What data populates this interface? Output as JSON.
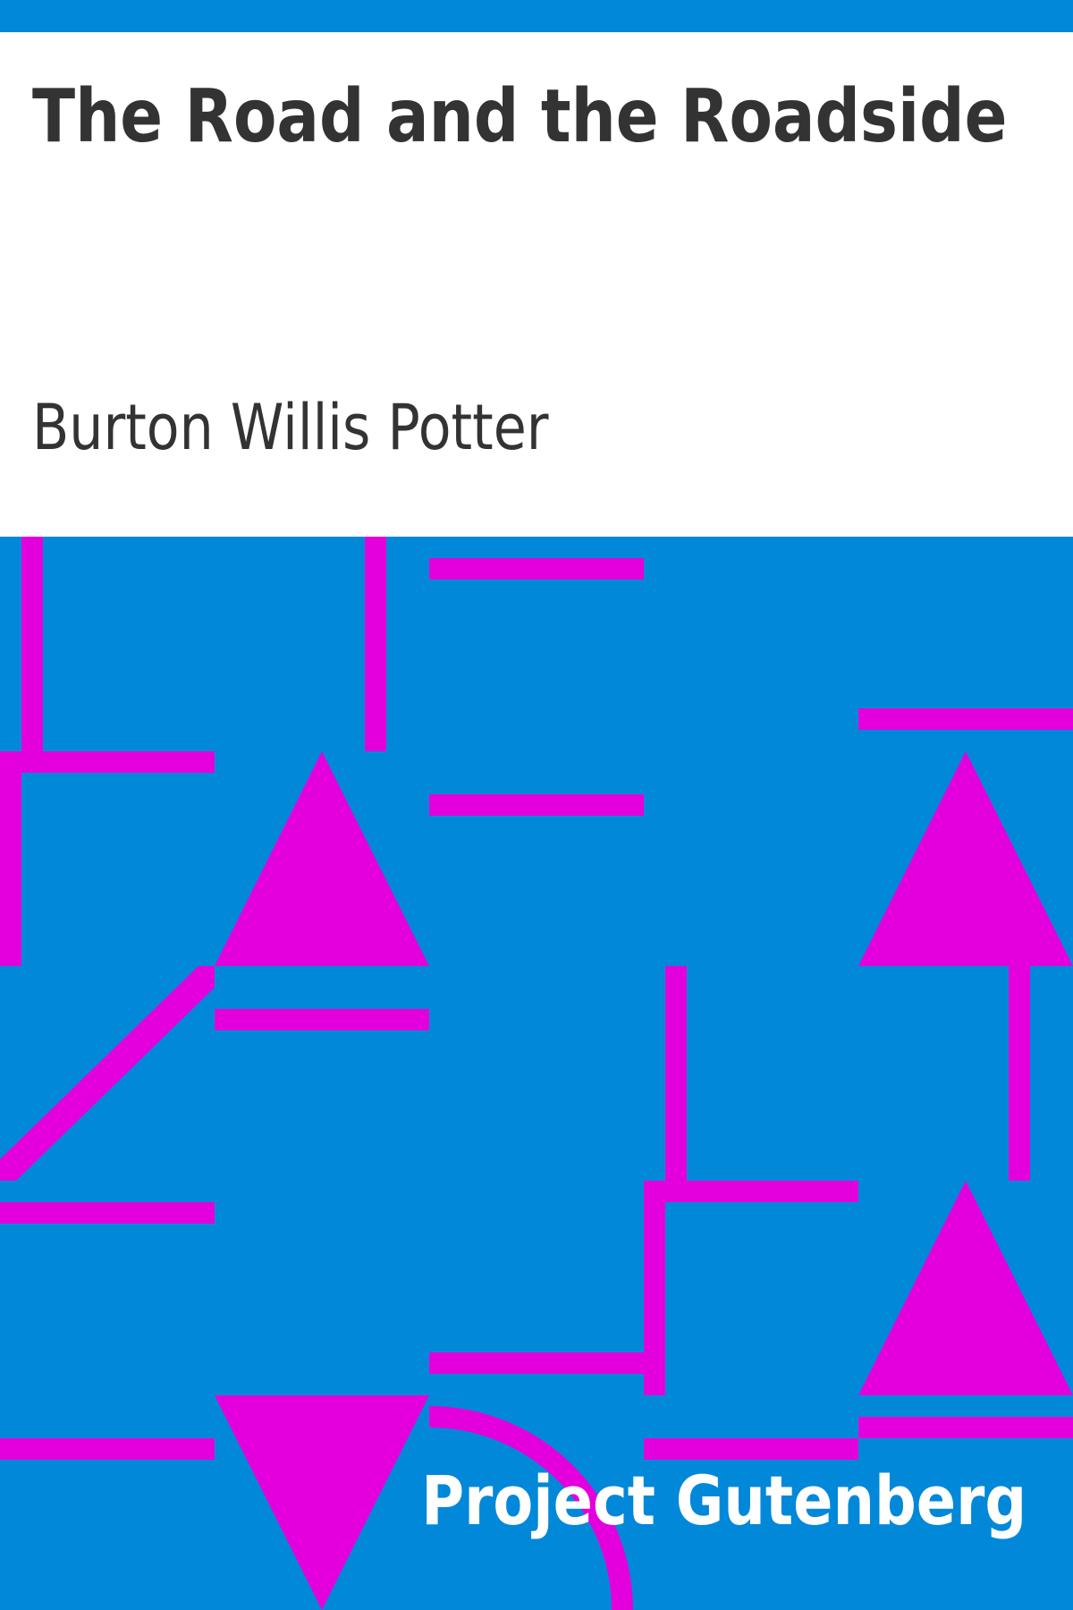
{
  "book": {
    "title": "The Road and the Roadside",
    "author": "Burton Willis Potter"
  },
  "publisher": {
    "name": "Project Gutenberg"
  },
  "colors": {
    "background": "#ffffff",
    "pattern_background": "#0288d9",
    "pattern_shapes": "#e300dc",
    "text_dark": "#333333",
    "text_light": "#ffffff"
  }
}
